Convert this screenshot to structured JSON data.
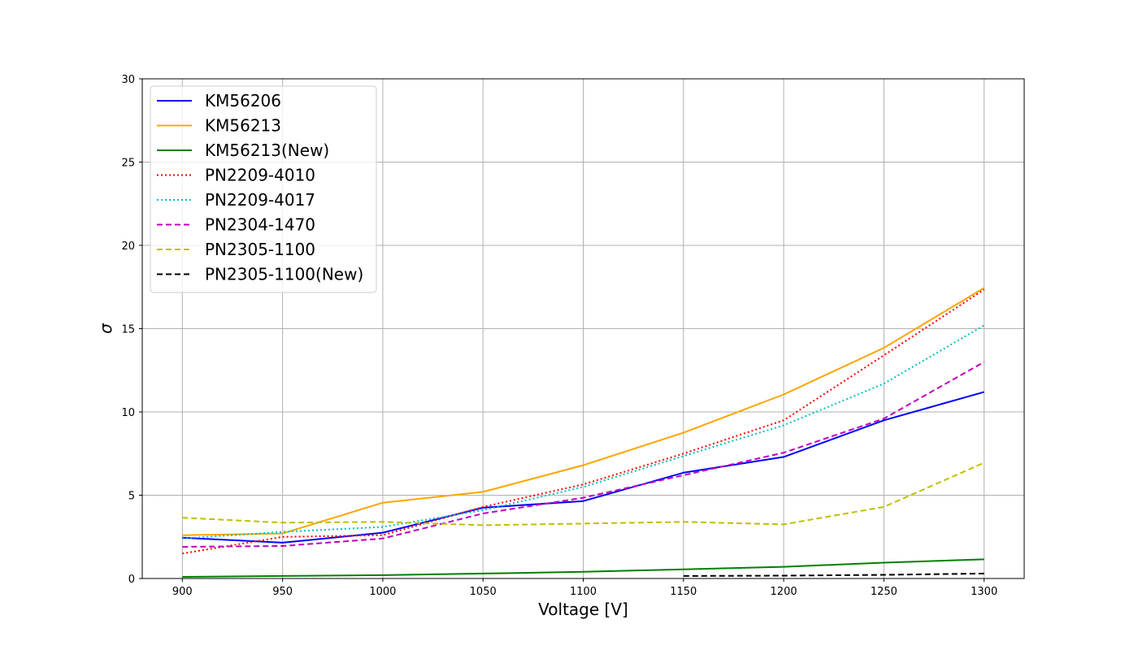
{
  "chart_data": {
    "type": "line",
    "title": "",
    "xlabel": "Voltage [V]",
    "ylabel": "σ",
    "xlim": [
      880,
      1320
    ],
    "ylim": [
      0,
      30
    ],
    "xticks": [
      900,
      950,
      1000,
      1050,
      1100,
      1150,
      1200,
      1250,
      1300
    ],
    "yticks": [
      0,
      5,
      10,
      15,
      20,
      25,
      30
    ],
    "grid": true,
    "legend_position": "top-left",
    "series": [
      {
        "name": "KM56206",
        "color": "#0000ff",
        "style": "solid",
        "x": [
          900,
          950,
          1000,
          1050,
          1100,
          1150,
          1200,
          1250,
          1300
        ],
        "y": [
          2.45,
          2.15,
          2.75,
          4.25,
          4.65,
          6.35,
          7.3,
          9.5,
          11.2
        ]
      },
      {
        "name": "KM56213",
        "color": "#ffa500",
        "style": "solid",
        "x": [
          900,
          950,
          1000,
          1050,
          1100,
          1150,
          1200,
          1250,
          1300
        ],
        "y": [
          2.6,
          2.7,
          4.55,
          5.2,
          6.8,
          8.75,
          11.05,
          13.85,
          17.45
        ]
      },
      {
        "name": "KM56213(New)",
        "color": "#008000",
        "style": "solid",
        "x": [
          900,
          950,
          1000,
          1050,
          1100,
          1150,
          1200,
          1250,
          1300
        ],
        "y": [
          0.1,
          0.15,
          0.2,
          0.3,
          0.4,
          0.55,
          0.7,
          0.95,
          1.15
        ]
      },
      {
        "name": "PN2209-4010",
        "color": "#ff0000",
        "style": "dotted",
        "x": [
          900,
          950,
          1000,
          1050,
          1100,
          1150,
          1200,
          1250,
          1300
        ],
        "y": [
          1.5,
          2.5,
          2.6,
          4.3,
          5.65,
          7.5,
          9.5,
          13.4,
          17.35
        ]
      },
      {
        "name": "PN2209-4017",
        "color": "#00bfbf",
        "style": "dotted",
        "x": [
          900,
          950,
          1000,
          1050,
          1100,
          1150,
          1200,
          1250,
          1300
        ],
        "y": [
          2.4,
          2.8,
          3.1,
          4.1,
          5.5,
          7.35,
          9.2,
          11.7,
          15.2
        ]
      },
      {
        "name": "PN2304-1470",
        "color": "#bf00bf",
        "style": "dashed",
        "x": [
          900,
          950,
          1000,
          1050,
          1100,
          1150,
          1200,
          1250,
          1300
        ],
        "y": [
          1.9,
          1.95,
          2.4,
          3.9,
          4.85,
          6.2,
          7.55,
          9.6,
          13.0
        ]
      },
      {
        "name": "PN2305-1100",
        "color": "#bfbf00",
        "style": "dashed",
        "x": [
          900,
          950,
          1000,
          1050,
          1100,
          1150,
          1200,
          1250,
          1300
        ],
        "y": [
          3.65,
          3.35,
          3.4,
          3.2,
          3.3,
          3.4,
          3.25,
          4.3,
          6.95
        ]
      },
      {
        "name": "PN2305-1100(New)",
        "color": "#000000",
        "style": "dashed",
        "x": [
          1150,
          1200,
          1250,
          1300
        ],
        "y": [
          0.15,
          0.17,
          0.22,
          0.3
        ]
      }
    ]
  }
}
